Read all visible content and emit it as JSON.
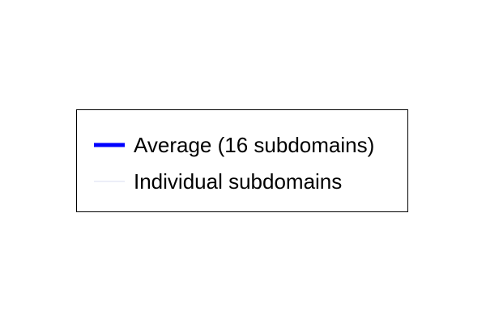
{
  "chart_data": {
    "type": "line",
    "title": "",
    "xlabel": "",
    "ylabel": "",
    "series": [
      {
        "name": "Average (16 subdomains)",
        "color": "#0000ff",
        "style": "thick"
      },
      {
        "name": "Individual subdomains",
        "color": "#d8dcf0",
        "style": "thin"
      }
    ],
    "legend": {
      "placement": "center",
      "framed": true
    }
  }
}
